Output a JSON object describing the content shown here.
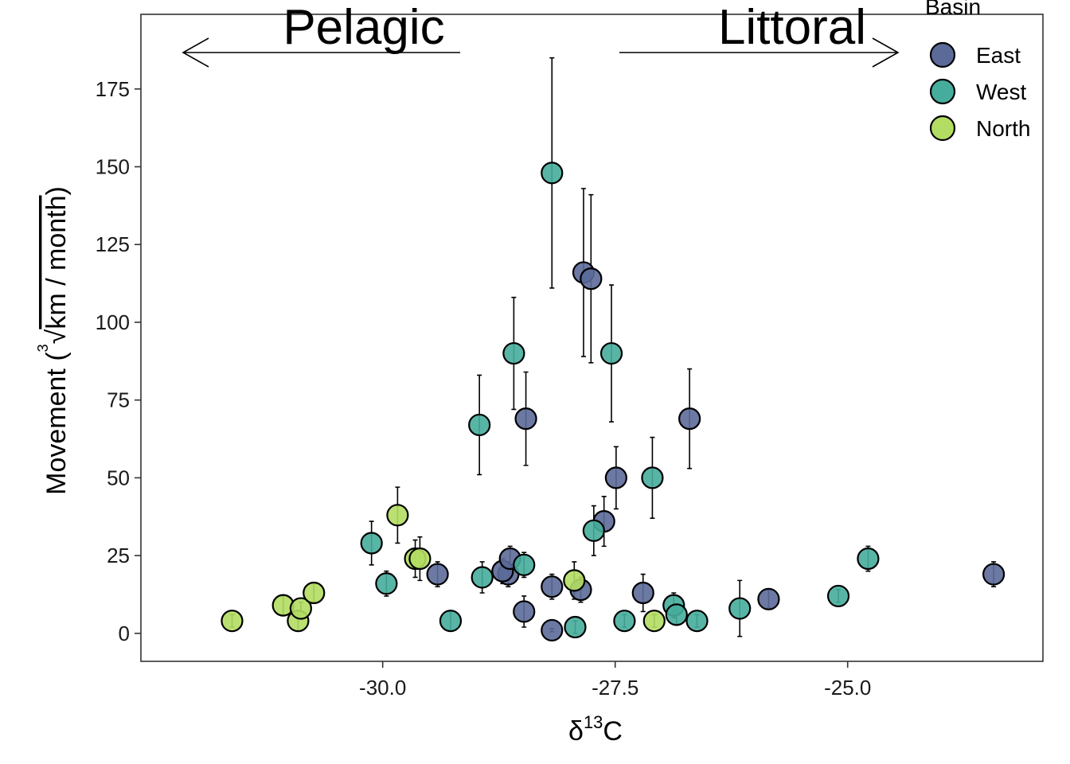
{
  "chart_data": {
    "type": "scatter",
    "title": "",
    "xlabel_prefix": "δ",
    "xlabel_sup": "13",
    "xlabel_suffix": "C",
    "ylabel_prefix": "Movement (",
    "ylabel_root_index": "3",
    "ylabel_radical": "√",
    "ylabel_radicand": "km / month",
    "ylabel_suffix": ")",
    "xlim": [
      -32.6,
      -22.9
    ],
    "ylim": [
      -9,
      199
    ],
    "x_ticks": [
      -30.0,
      -27.5,
      -25.0
    ],
    "x_tick_labels": [
      "-30.0",
      "-27.5",
      "-25.0"
    ],
    "y_ticks": [
      0,
      25,
      50,
      75,
      100,
      125,
      150,
      175
    ],
    "y_tick_labels": [
      "0",
      "25",
      "50",
      "75",
      "100",
      "125",
      "150",
      "175"
    ],
    "grid": false,
    "annotations": {
      "left": {
        "text": "Pelagic",
        "arrow": "left"
      },
      "right": {
        "text": "Littoral",
        "arrow": "right"
      }
    },
    "legend": {
      "title": "Basin",
      "position": "top-right"
    },
    "colors": {
      "East": "#5b6a99",
      "West": "#46ad9c",
      "North": "#b3dd62"
    },
    "series": [
      {
        "name": "East",
        "points": [
          {
            "x": -28.18,
            "y": 1,
            "err": 0.5
          },
          {
            "x": -28.48,
            "y": 7,
            "err": 5
          },
          {
            "x": -28.18,
            "y": 15,
            "err": 4
          },
          {
            "x": -27.87,
            "y": 14,
            "err": 4
          },
          {
            "x": -28.65,
            "y": 19,
            "err": 4
          },
          {
            "x": -28.71,
            "y": 20,
            "err": 4
          },
          {
            "x": -28.63,
            "y": 24,
            "err": 4
          },
          {
            "x": -29.41,
            "y": 19,
            "err": 4
          },
          {
            "x": -27.2,
            "y": 13,
            "err": 6
          },
          {
            "x": -27.62,
            "y": 36,
            "err": 8
          },
          {
            "x": -27.49,
            "y": 50,
            "err": 10
          },
          {
            "x": -26.7,
            "y": 69,
            "err": 16
          },
          {
            "x": -28.46,
            "y": 69,
            "err": 15
          },
          {
            "x": -27.84,
            "y": 116,
            "err": 27
          },
          {
            "x": -27.76,
            "y": 114,
            "err": 27
          },
          {
            "x": -25.85,
            "y": 11,
            "err": 3
          },
          {
            "x": -23.43,
            "y": 19,
            "err": 4
          }
        ]
      },
      {
        "name": "West",
        "points": [
          {
            "x": -28.18,
            "y": 148,
            "err": 37
          },
          {
            "x": -28.59,
            "y": 90,
            "err": 18
          },
          {
            "x": -27.54,
            "y": 90,
            "err": 22
          },
          {
            "x": -28.96,
            "y": 67,
            "err": 16
          },
          {
            "x": -27.1,
            "y": 50,
            "err": 13
          },
          {
            "x": -27.73,
            "y": 33,
            "err": 8
          },
          {
            "x": -30.12,
            "y": 29,
            "err": 7
          },
          {
            "x": -29.96,
            "y": 16,
            "err": 4
          },
          {
            "x": -28.93,
            "y": 18,
            "err": 5
          },
          {
            "x": -28.48,
            "y": 22,
            "err": 4
          },
          {
            "x": -29.27,
            "y": 4,
            "err": 3
          },
          {
            "x": -27.93,
            "y": 2,
            "err": 2
          },
          {
            "x": -27.4,
            "y": 4,
            "err": 2
          },
          {
            "x": -26.87,
            "y": 9,
            "err": 4
          },
          {
            "x": -26.84,
            "y": 6,
            "err": 3
          },
          {
            "x": -26.62,
            "y": 4,
            "err": 2
          },
          {
            "x": -26.16,
            "y": 8,
            "err": 9
          },
          {
            "x": -25.1,
            "y": 12,
            "err": 2
          },
          {
            "x": -24.78,
            "y": 24,
            "err": 4
          }
        ]
      },
      {
        "name": "North",
        "points": [
          {
            "x": -31.62,
            "y": 4,
            "err": 2
          },
          {
            "x": -31.07,
            "y": 9,
            "err": 3
          },
          {
            "x": -30.91,
            "y": 4,
            "err": 3
          },
          {
            "x": -30.88,
            "y": 8,
            "err": 2
          },
          {
            "x": -30.74,
            "y": 13,
            "err": 3
          },
          {
            "x": -29.84,
            "y": 38,
            "err": 9
          },
          {
            "x": -29.65,
            "y": 24,
            "err": 6
          },
          {
            "x": -29.6,
            "y": 24,
            "err": 7
          },
          {
            "x": -27.94,
            "y": 17,
            "err": 6
          },
          {
            "x": -27.08,
            "y": 4,
            "err": 2
          }
        ]
      }
    ]
  }
}
